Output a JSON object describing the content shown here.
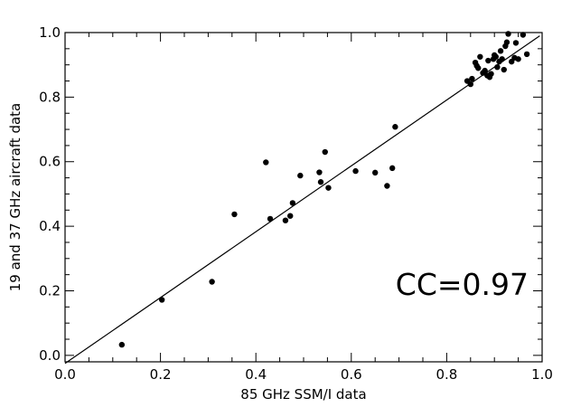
{
  "chart_data": {
    "type": "scatter",
    "xlabel": "85 GHz SSM/I data",
    "ylabel": "19 and 37 GHz aircraft data",
    "annotation": "CC=0.97",
    "xlim": [
      0.0,
      1.0
    ],
    "ylim": [
      -0.02,
      1.0
    ],
    "x_ticks": [
      0.0,
      0.2,
      0.4,
      0.6,
      0.8,
      1.0
    ],
    "y_ticks": [
      0.0,
      0.2,
      0.4,
      0.6,
      0.8,
      1.0
    ],
    "x_tick_labels": [
      "0.0",
      "0.2",
      "0.4",
      "0.6",
      "0.8",
      "1.0"
    ],
    "y_tick_labels": [
      "0.0",
      "0.2",
      "0.4",
      "0.6",
      "0.8",
      "1.0"
    ],
    "grid": false,
    "fit_line": {
      "x": [
        0.0,
        0.995
      ],
      "y": [
        -0.025,
        0.99
      ]
    },
    "points": [
      [
        0.119,
        0.033
      ],
      [
        0.203,
        0.172
      ],
      [
        0.308,
        0.228
      ],
      [
        0.355,
        0.437
      ],
      [
        0.421,
        0.598
      ],
      [
        0.43,
        0.423
      ],
      [
        0.462,
        0.418
      ],
      [
        0.472,
        0.432
      ],
      [
        0.477,
        0.472
      ],
      [
        0.493,
        0.557
      ],
      [
        0.533,
        0.567
      ],
      [
        0.536,
        0.537
      ],
      [
        0.545,
        0.63
      ],
      [
        0.552,
        0.519
      ],
      [
        0.609,
        0.571
      ],
      [
        0.65,
        0.566
      ],
      [
        0.675,
        0.525
      ],
      [
        0.686,
        0.58
      ],
      [
        0.692,
        0.708
      ],
      [
        0.843,
        0.85
      ],
      [
        0.85,
        0.84
      ],
      [
        0.853,
        0.857
      ],
      [
        0.86,
        0.907
      ],
      [
        0.863,
        0.897
      ],
      [
        0.866,
        0.89
      ],
      [
        0.87,
        0.925
      ],
      [
        0.876,
        0.875
      ],
      [
        0.88,
        0.882
      ],
      [
        0.885,
        0.867
      ],
      [
        0.887,
        0.913
      ],
      [
        0.89,
        0.862
      ],
      [
        0.893,
        0.872
      ],
      [
        0.898,
        0.918
      ],
      [
        0.9,
        0.93
      ],
      [
        0.903,
        0.925
      ],
      [
        0.906,
        0.893
      ],
      [
        0.91,
        0.91
      ],
      [
        0.913,
        0.943
      ],
      [
        0.916,
        0.918
      ],
      [
        0.92,
        0.885
      ],
      [
        0.923,
        0.958
      ],
      [
        0.926,
        0.97
      ],
      [
        0.929,
        0.996
      ],
      [
        0.936,
        0.91
      ],
      [
        0.942,
        0.922
      ],
      [
        0.945,
        0.968
      ],
      [
        0.95,
        0.918
      ],
      [
        0.96,
        0.993
      ],
      [
        0.968,
        0.933
      ]
    ]
  }
}
